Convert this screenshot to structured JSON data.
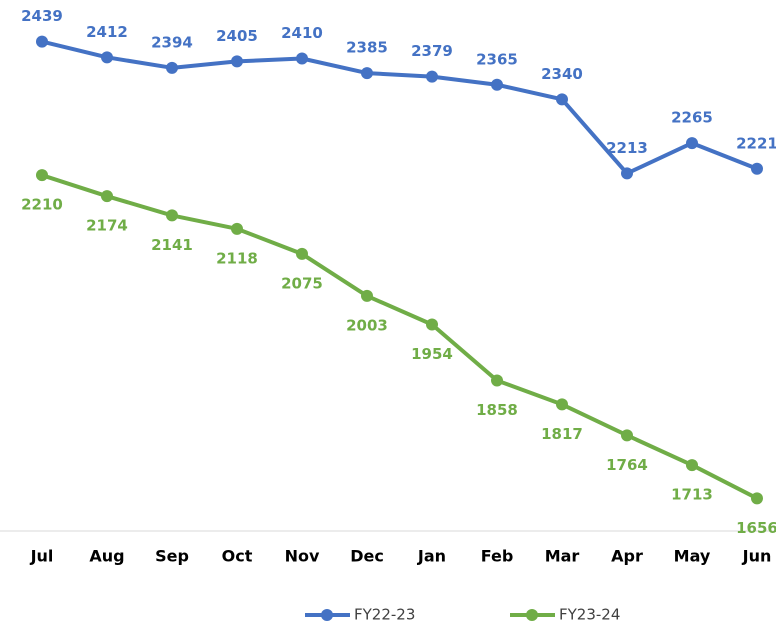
{
  "chart_data": {
    "type": "line",
    "categories": [
      "Jul",
      "Aug",
      "Sep",
      "Oct",
      "Nov",
      "Dec",
      "Jan",
      "Feb",
      "Mar",
      "Apr",
      "May",
      "Jun"
    ],
    "series": [
      {
        "name": "FY22-23",
        "color": "#4472c4",
        "values": [
          2439,
          2412,
          2394,
          2405,
          2410,
          2385,
          2379,
          2365,
          2340,
          2213,
          2265,
          2221
        ]
      },
      {
        "name": "FY23-24",
        "color": "#70ad47",
        "values": [
          2210,
          2174,
          2141,
          2118,
          2075,
          2003,
          1954,
          1858,
          1817,
          1764,
          1713,
          1656
        ]
      }
    ],
    "ylim": [
      1600,
      2500
    ],
    "grid": false,
    "legend": "bottom"
  }
}
